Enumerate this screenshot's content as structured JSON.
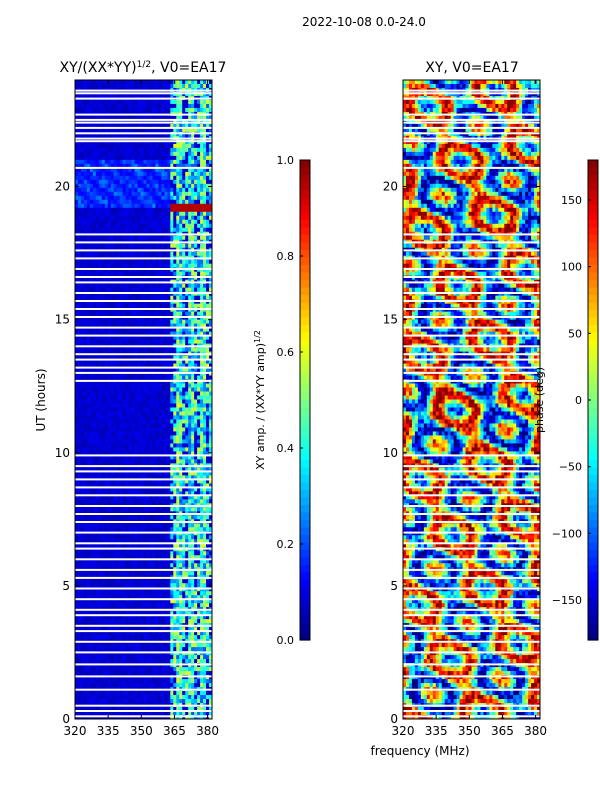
{
  "figure_title": "2022-10-08 0.0-24.0",
  "colors": {
    "axis": "#000000",
    "gap": "#ffffff"
  },
  "chart_data": [
    {
      "type": "heatmap",
      "title": "XY/(XX*YY)",
      "title_exp": "1/2",
      "title_suffix": ", V0=EA17",
      "xlabel": "frequency (MHz)",
      "ylabel": "UT (hours)",
      "x_range_mhz": [
        320,
        382
      ],
      "y_range_hours": [
        0,
        24
      ],
      "xticks": [
        320,
        335,
        350,
        365,
        380
      ],
      "yticks": [
        0,
        5,
        10,
        15,
        20
      ],
      "colormap": "jet",
      "colorbar": {
        "label": "XY amp. / (XX*YY amp)",
        "label_exp": "1/2",
        "range": [
          0.0,
          1.0
        ],
        "ticks": [
          0.0,
          0.2,
          0.4,
          0.6,
          0.8,
          1.0
        ],
        "tick_labels": [
          "0.0",
          "0.2",
          "0.4",
          "0.6",
          "0.8",
          "1.0"
        ]
      },
      "description_bands": {
        "low_signal_region_mhz": [
          320,
          363
        ],
        "low_signal_value": 0.05,
        "active_region_mhz": [
          363,
          382
        ],
        "active_value_range": [
          0.2,
          0.6
        ],
        "bright_patch_ut_hours": [
          19.0,
          19.4
        ],
        "bright_patch_value": 0.95
      }
    },
    {
      "type": "heatmap",
      "title": "XY, V0=EA17",
      "xlabel": "frequency (MHz)",
      "ylabel": "",
      "x_range_mhz": [
        320,
        382
      ],
      "y_range_hours": [
        0,
        24
      ],
      "xticks": [
        320,
        335,
        350,
        365,
        380
      ],
      "yticks": [
        0,
        5,
        10,
        15,
        20
      ],
      "colormap": "jet",
      "colorbar": {
        "label": "phase (deg)",
        "range": [
          -180,
          180
        ],
        "ticks": [
          -150,
          -100,
          -50,
          0,
          50,
          100,
          150
        ],
        "tick_labels": [
          "−150",
          "−100",
          "−50",
          "0",
          "50",
          "100",
          "150"
        ]
      },
      "description_bands": {
        "value_range_deg": [
          -180,
          180
        ],
        "pattern": "noisy phase wrapping"
      }
    }
  ],
  "flagged_gaps_ut_hours": [
    0.1,
    0.3,
    0.5,
    1.1,
    1.6,
    2.05,
    2.5,
    2.9,
    3.3,
    3.5,
    3.9,
    4.1,
    4.5,
    4.9,
    5.3,
    5.6,
    6.0,
    6.4,
    6.6,
    7.0,
    7.4,
    7.7,
    8.0,
    8.4,
    8.7,
    9.0,
    9.3,
    9.5,
    9.9,
    12.7,
    13.0,
    13.2,
    13.5,
    13.7,
    14.0,
    14.4,
    14.7,
    15.1,
    15.4,
    15.7,
    16.0,
    16.4,
    16.6,
    16.9,
    17.3,
    17.6,
    17.9,
    18.2,
    20.7,
    21.7,
    21.8,
    22.0,
    22.2,
    22.4,
    22.5,
    22.7,
    23.3,
    23.5,
    23.6
  ]
}
